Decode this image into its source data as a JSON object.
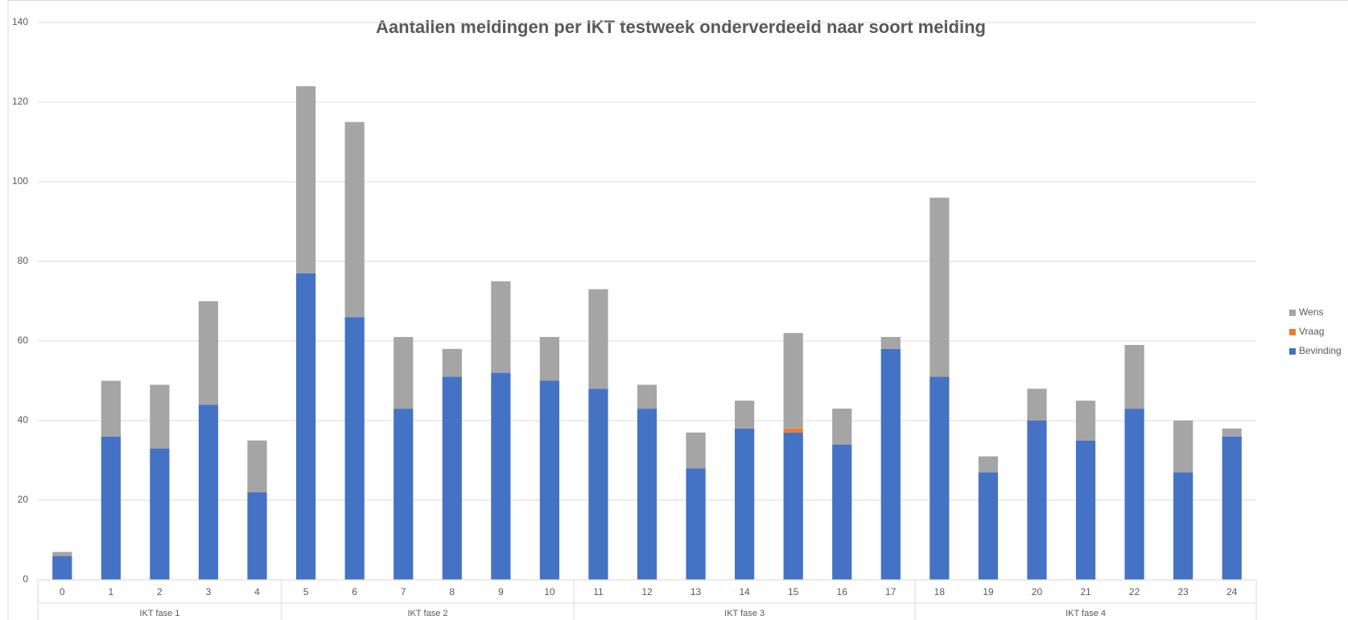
{
  "chart_data": {
    "type": "stacked_bar",
    "title": "Aantallen meldingen per IKT testweek onderverdeeld naar soort melding",
    "categories": [
      "0",
      "1",
      "2",
      "3",
      "4",
      "5",
      "6",
      "7",
      "8",
      "9",
      "10",
      "11",
      "12",
      "13",
      "14",
      "15",
      "16",
      "17",
      "18",
      "19",
      "20",
      "21",
      "22",
      "23",
      "24"
    ],
    "groups": [
      {
        "name": "IKT fase 1",
        "members": [
          "0",
          "1",
          "2",
          "3",
          "4"
        ]
      },
      {
        "name": "IKT fase 2",
        "members": [
          "5",
          "6",
          "7",
          "8",
          "9",
          "10"
        ]
      },
      {
        "name": "IKT fase 3",
        "members": [
          "11",
          "12",
          "13",
          "14",
          "15",
          "16",
          "17"
        ]
      },
      {
        "name": "IKT fase 4",
        "members": [
          "18",
          "19",
          "20",
          "21",
          "22",
          "23",
          "24"
        ]
      }
    ],
    "series": [
      {
        "name": "Bevinding",
        "color": "#4472c4",
        "values": [
          6,
          36,
          33,
          44,
          22,
          77,
          66,
          43,
          51,
          52,
          50,
          48,
          43,
          28,
          38,
          37,
          34,
          58,
          51,
          27,
          40,
          35,
          43,
          27,
          36
        ]
      },
      {
        "name": "Vraag",
        "color": "#ed7d31",
        "values": [
          0,
          0,
          0,
          0,
          0,
          0,
          0,
          0,
          0,
          0,
          0,
          0,
          0,
          0,
          0,
          1,
          0,
          0,
          0,
          0,
          0,
          0,
          0,
          0,
          0
        ]
      },
      {
        "name": "Wens",
        "color": "#a5a5a5",
        "values": [
          1,
          14,
          16,
          26,
          13,
          47,
          49,
          18,
          7,
          23,
          11,
          25,
          6,
          9,
          7,
          24,
          9,
          3,
          45,
          4,
          8,
          10,
          16,
          13,
          2
        ]
      }
    ],
    "ylim": [
      0,
      140
    ],
    "yticks": [
      0,
      20,
      40,
      60,
      80,
      100,
      120,
      140
    ],
    "grid": true,
    "legend": "right"
  }
}
